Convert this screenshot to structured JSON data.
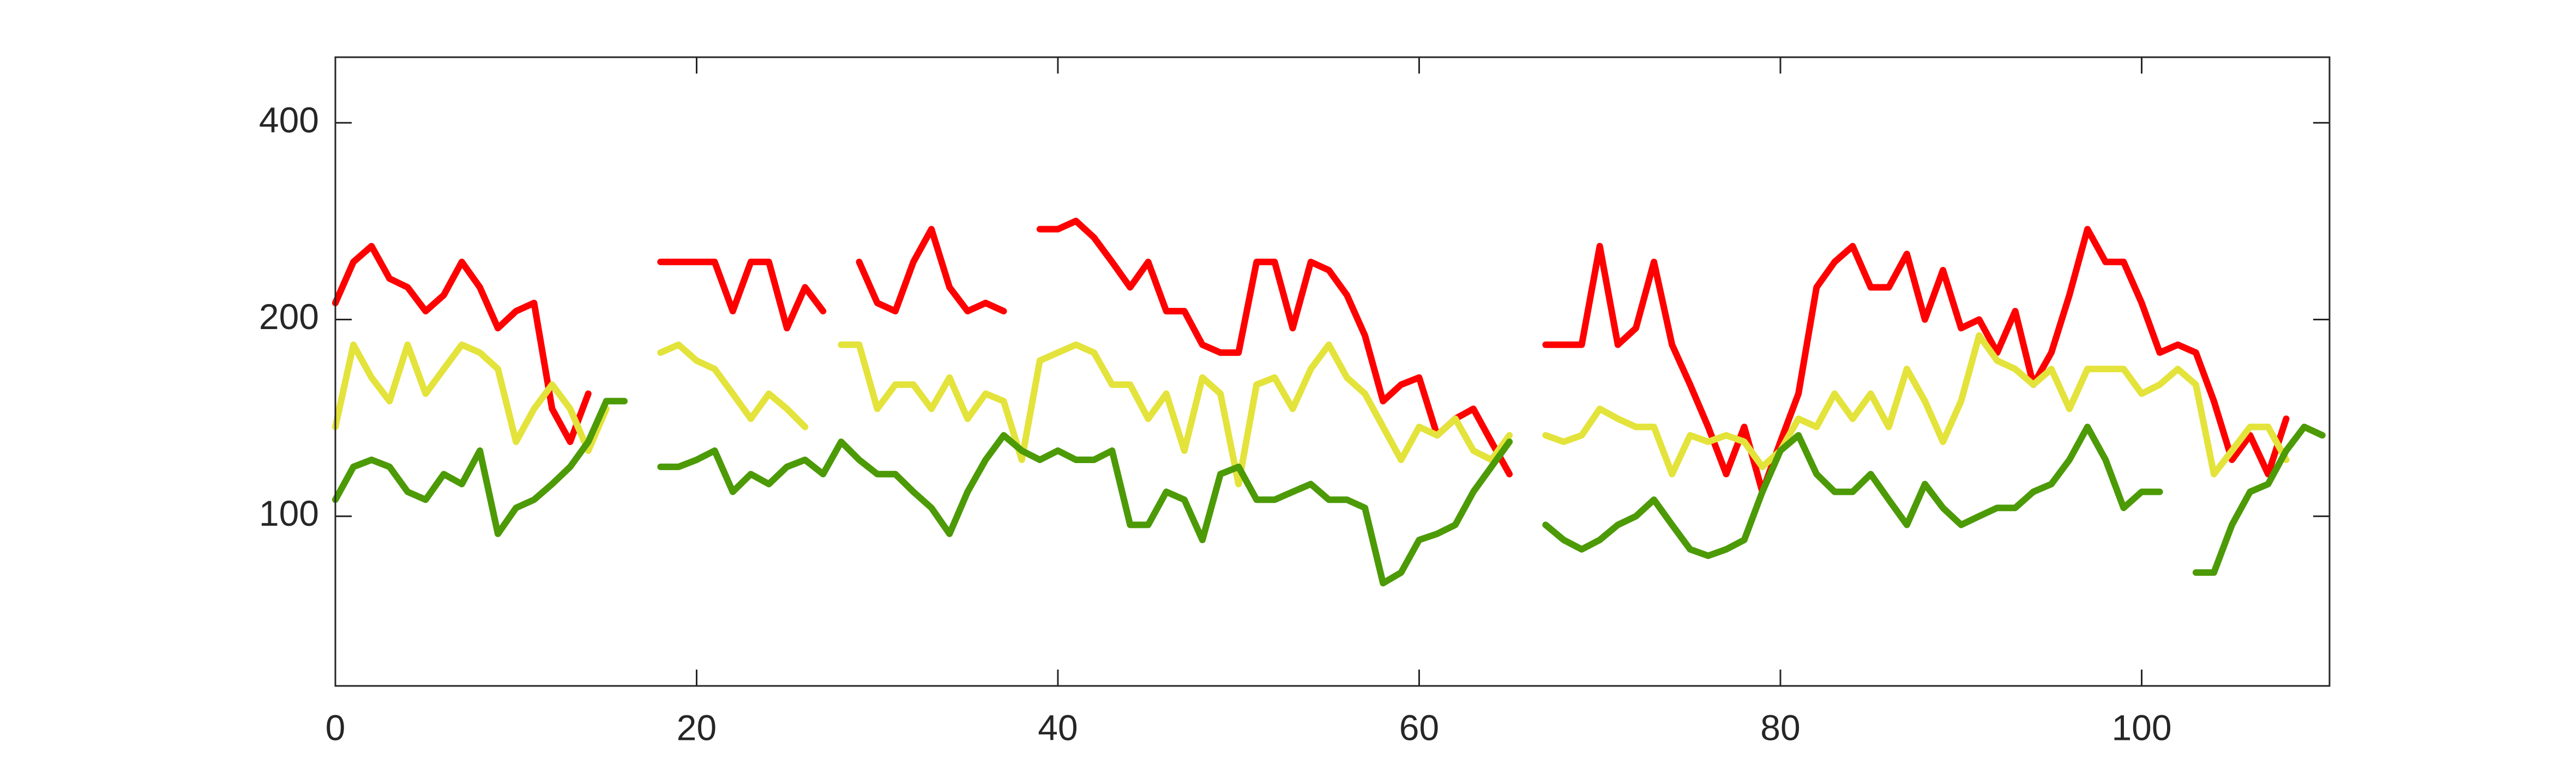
{
  "chart_data": {
    "type": "line",
    "log_y": true,
    "box": true,
    "xlim": [
      0,
      110.4
    ],
    "ylim": [
      55,
      504
    ],
    "xticks": [
      0,
      20,
      40,
      60,
      80,
      100
    ],
    "yticks": [
      100,
      200,
      400
    ],
    "x": [
      0,
      1,
      2,
      3,
      4,
      5,
      6,
      7,
      8,
      9,
      10,
      11,
      12,
      13,
      14,
      15,
      16,
      17,
      18,
      19,
      20,
      21,
      22,
      23,
      24,
      25,
      26,
      27,
      28,
      29,
      30,
      31,
      32,
      33,
      34,
      35,
      36,
      37,
      38,
      39,
      40,
      41,
      42,
      43,
      44,
      45,
      46,
      47,
      48,
      49,
      50,
      51,
      52,
      53,
      54,
      55,
      56,
      57,
      58,
      59,
      60,
      61,
      62,
      63,
      64,
      65,
      66,
      67,
      68,
      69,
      70,
      71,
      72,
      73,
      74,
      75,
      76,
      77,
      78,
      79,
      80,
      81,
      82,
      83,
      84,
      85,
      86,
      87,
      88,
      89,
      90,
      91,
      92,
      93,
      94,
      95,
      96,
      97,
      98,
      99,
      100,
      101,
      102,
      103,
      104,
      105,
      106,
      107,
      108,
      109,
      110
    ],
    "series": [
      {
        "color": "#ff0000",
        "values": [
          212,
          245,
          259,
          231,
          224,
          206,
          218,
          245,
          224,
          194,
          206,
          212,
          146,
          130,
          154,
          null,
          null,
          null,
          245,
          245,
          245,
          245,
          206,
          245,
          245,
          194,
          224,
          206,
          null,
          245,
          212,
          206,
          245,
          275,
          224,
          206,
          212,
          206,
          null,
          275,
          275,
          283,
          267,
          245,
          224,
          245,
          206,
          206,
          183,
          178,
          178,
          245,
          245,
          194,
          245,
          238,
          218,
          189,
          150,
          159,
          163,
          133,
          141,
          146,
          130,
          116,
          null,
          183,
          183,
          183,
          259,
          183,
          194,
          245,
          183,
          159,
          137,
          116,
          137,
          109,
          130,
          154,
          224,
          245,
          259,
          224,
          224,
          252,
          200,
          238,
          194,
          200,
          178,
          206,
          159,
          178,
          218,
          275,
          245,
          245,
          212,
          178,
          183,
          178,
          150,
          122,
          133,
          116,
          141,
          null,
          null
        ]
      },
      {
        "color": "#e3e33b",
        "values": [
          137,
          183,
          163,
          150,
          183,
          154,
          168,
          183,
          178,
          168,
          130,
          146,
          159,
          146,
          126,
          146,
          null,
          null,
          178,
          183,
          173,
          168,
          154,
          141,
          154,
          146,
          137,
          null,
          183,
          183,
          146,
          159,
          159,
          146,
          163,
          141,
          154,
          150,
          122,
          173,
          178,
          183,
          178,
          159,
          159,
          141,
          154,
          126,
          163,
          154,
          112,
          159,
          163,
          146,
          168,
          183,
          163,
          154,
          137,
          122,
          137,
          133,
          141,
          126,
          122,
          133,
          null,
          133,
          130,
          133,
          146,
          141,
          137,
          137,
          116,
          133,
          130,
          133,
          130,
          119,
          126,
          141,
          137,
          154,
          141,
          154,
          137,
          168,
          150,
          130,
          150,
          189,
          173,
          168,
          159,
          168,
          146,
          168,
          168,
          168,
          154,
          159,
          168,
          159,
          116,
          126,
          137,
          137,
          122,
          null,
          null
        ]
      },
      {
        "color": "#4c9a06",
        "values": [
          106,
          119,
          122,
          119,
          109,
          106,
          116,
          112,
          126,
          94,
          103,
          106,
          112,
          119,
          130,
          150,
          150,
          null,
          119,
          119,
          122,
          126,
          109,
          116,
          112,
          119,
          122,
          116,
          130,
          122,
          116,
          116,
          109,
          103,
          94,
          109,
          122,
          133,
          126,
          122,
          126,
          122,
          122,
          126,
          97,
          97,
          109,
          106,
          92,
          116,
          119,
          106,
          106,
          109,
          112,
          106,
          106,
          103,
          79,
          82,
          92,
          94,
          97,
          109,
          119,
          130,
          null,
          97,
          92,
          89,
          92,
          97,
          100,
          106,
          97,
          89,
          87,
          89,
          92,
          109,
          126,
          133,
          116,
          109,
          109,
          116,
          106,
          97,
          112,
          103,
          97,
          100,
          103,
          103,
          109,
          112,
          122,
          137,
          122,
          103,
          109,
          109,
          null,
          82,
          82,
          97,
          109,
          112,
          126,
          137,
          133
        ]
      }
    ]
  }
}
